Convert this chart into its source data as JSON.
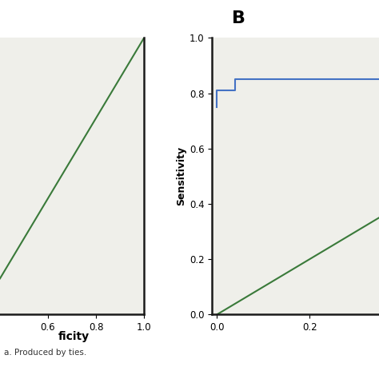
{
  "panel_a": {
    "xlabel_partial": "ficity",
    "xlim": [
      0.4,
      1.0
    ],
    "ylim": [
      -0.15,
      1.0
    ],
    "xticks": [
      0.6,
      0.8,
      1.0
    ],
    "yticks": [],
    "green_line_x": [
      0.4,
      1.0
    ],
    "green_line_y": [
      0.0,
      1.0
    ],
    "bg_color": "#efefea",
    "clip_top": true
  },
  "panel_b": {
    "ylabel": "Sensitivity",
    "xlim": [
      -0.01,
      0.35
    ],
    "ylim": [
      0.0,
      1.0
    ],
    "xticks": [
      0.0,
      0.2
    ],
    "yticks": [
      0.0,
      0.2,
      0.4,
      0.6,
      0.8,
      1.0
    ],
    "blue_roc_x": [
      0.0,
      0.0,
      0.04,
      0.04,
      0.12,
      0.35
    ],
    "blue_roc_y": [
      0.75,
      0.81,
      0.81,
      0.85,
      0.85,
      0.85
    ],
    "green_line_x": [
      0.0,
      0.35
    ],
    "green_line_y": [
      0.0,
      0.35
    ],
    "bg_color": "#efefea",
    "panel_label": "B"
  },
  "figure_bg": "#ffffff",
  "green_color": "#3a7a3a",
  "blue_color": "#4472c4",
  "footnote_text": "a. Produced by ties.",
  "border_color": "#1a1a1a"
}
